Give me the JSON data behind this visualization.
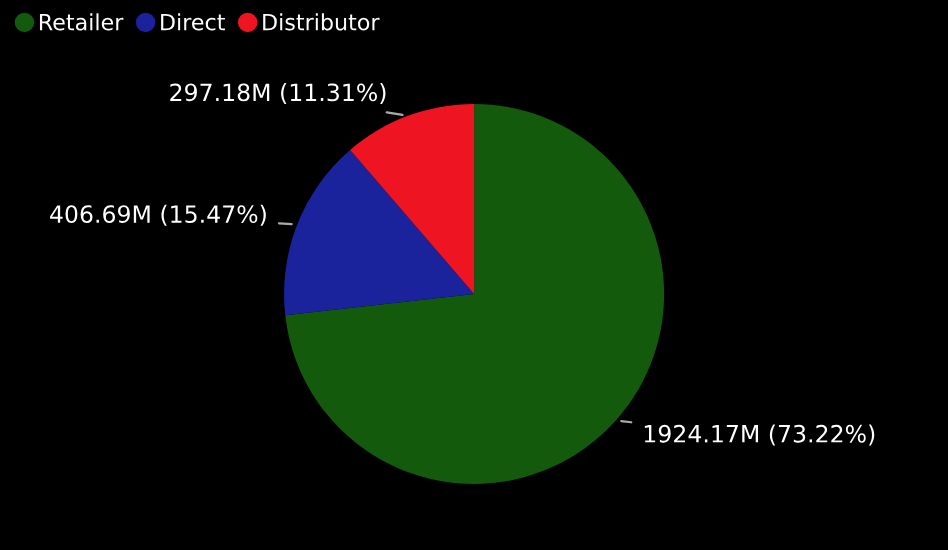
{
  "chart_data": {
    "type": "pie",
    "categories": [
      "Retailer",
      "Direct",
      "Distributor"
    ],
    "values": [
      73.22,
      15.47,
      11.31
    ],
    "colors": [
      "#145a0c",
      "#1b239c",
      "#ee1422"
    ],
    "value_labels": [
      "1924.17M (73.22%)",
      "406.69M (15.47%)",
      "297.18M (11.31%)"
    ],
    "legend": "top left"
  }
}
